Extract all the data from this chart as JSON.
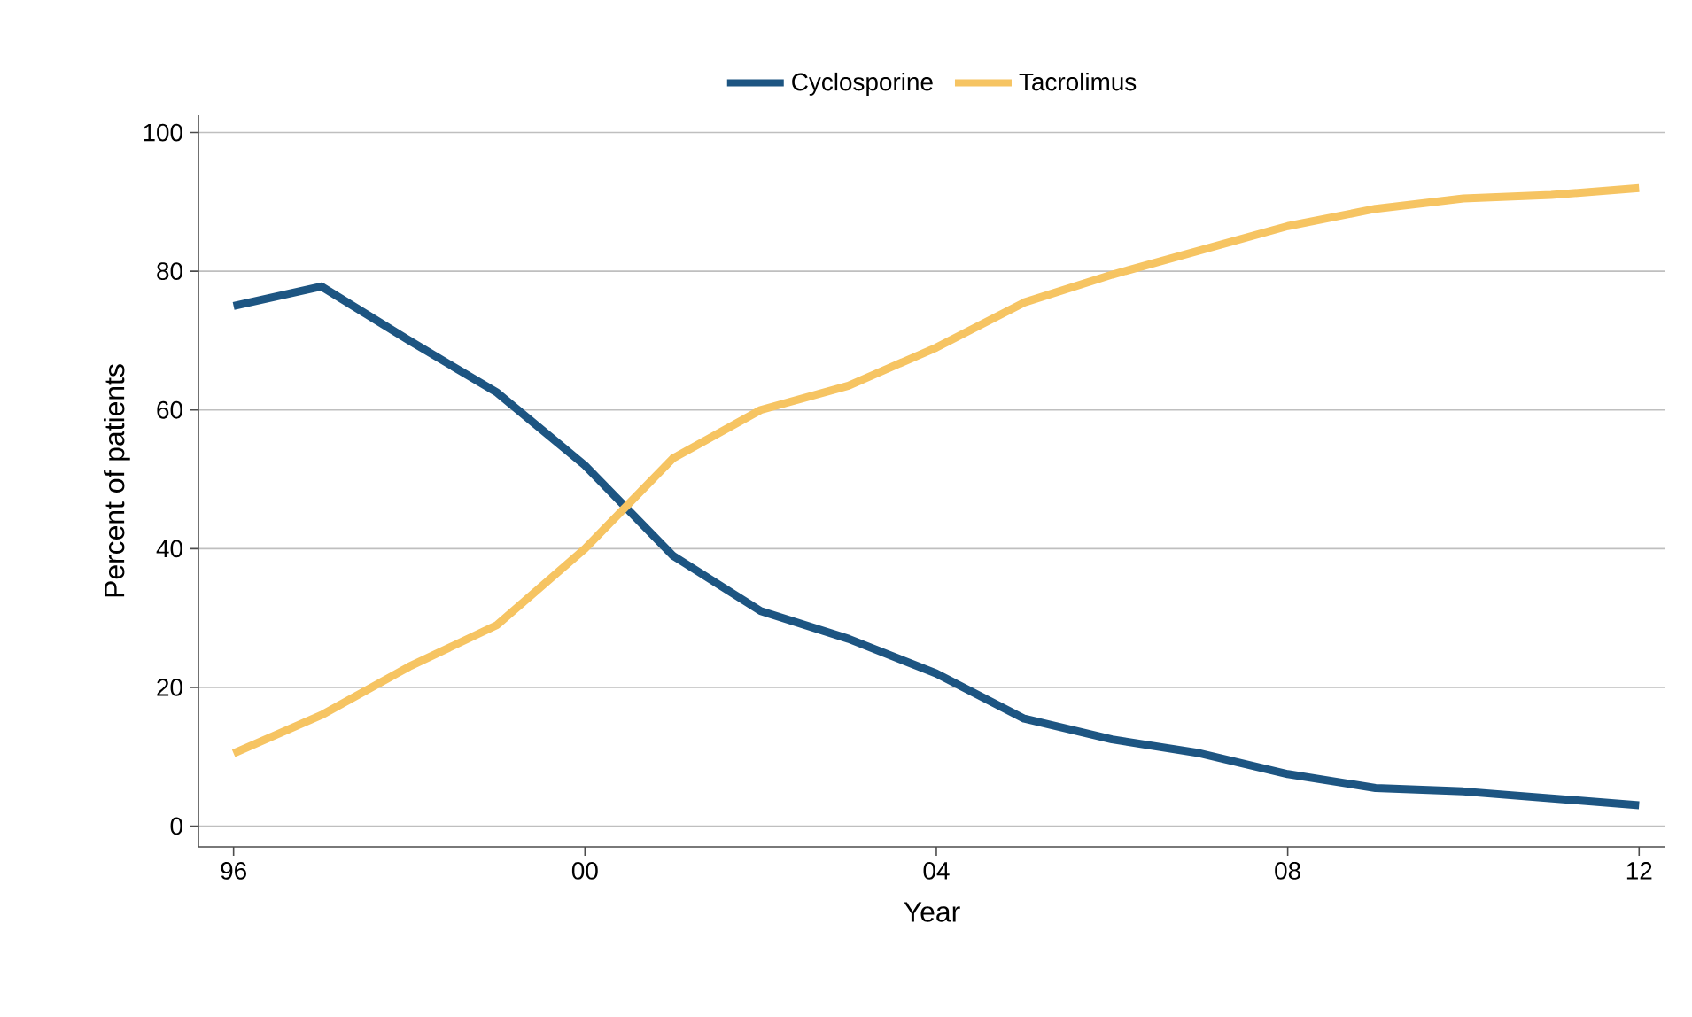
{
  "chart_data": {
    "type": "line",
    "xlabel": "Year",
    "ylabel": "Percent of patients",
    "x": [
      1996,
      1997,
      1998,
      1999,
      2000,
      2001,
      2002,
      2003,
      2004,
      2005,
      2006,
      2007,
      2008,
      2009,
      2010,
      2011,
      2012
    ],
    "series": [
      {
        "name": "Cyclosporine",
        "color": "#1d5582",
        "values": [
          75,
          77.8,
          70,
          62.5,
          52,
          39,
          31,
          27,
          22,
          15.5,
          12.5,
          10.5,
          7.5,
          5.5,
          5,
          4,
          3
        ]
      },
      {
        "name": "Tacrolimus",
        "color": "#f6c462",
        "values": [
          10.5,
          16,
          23,
          29,
          40,
          53,
          60,
          63.5,
          69,
          75.5,
          79.5,
          83,
          86.5,
          89,
          90.5,
          91,
          92
        ]
      }
    ],
    "xlim": [
      1995.6,
      2012.3
    ],
    "ylim": [
      -3,
      102.5
    ],
    "xticks": [
      {
        "value": 1996,
        "label": "96"
      },
      {
        "value": 2000,
        "label": "00"
      },
      {
        "value": 2004,
        "label": "04"
      },
      {
        "value": 2008,
        "label": "08"
      },
      {
        "value": 2012,
        "label": "12"
      }
    ],
    "yticks": [
      0,
      20,
      40,
      60,
      80,
      100
    ],
    "grid": "y",
    "legend": "top",
    "marker": "none",
    "line_style": "solid"
  }
}
